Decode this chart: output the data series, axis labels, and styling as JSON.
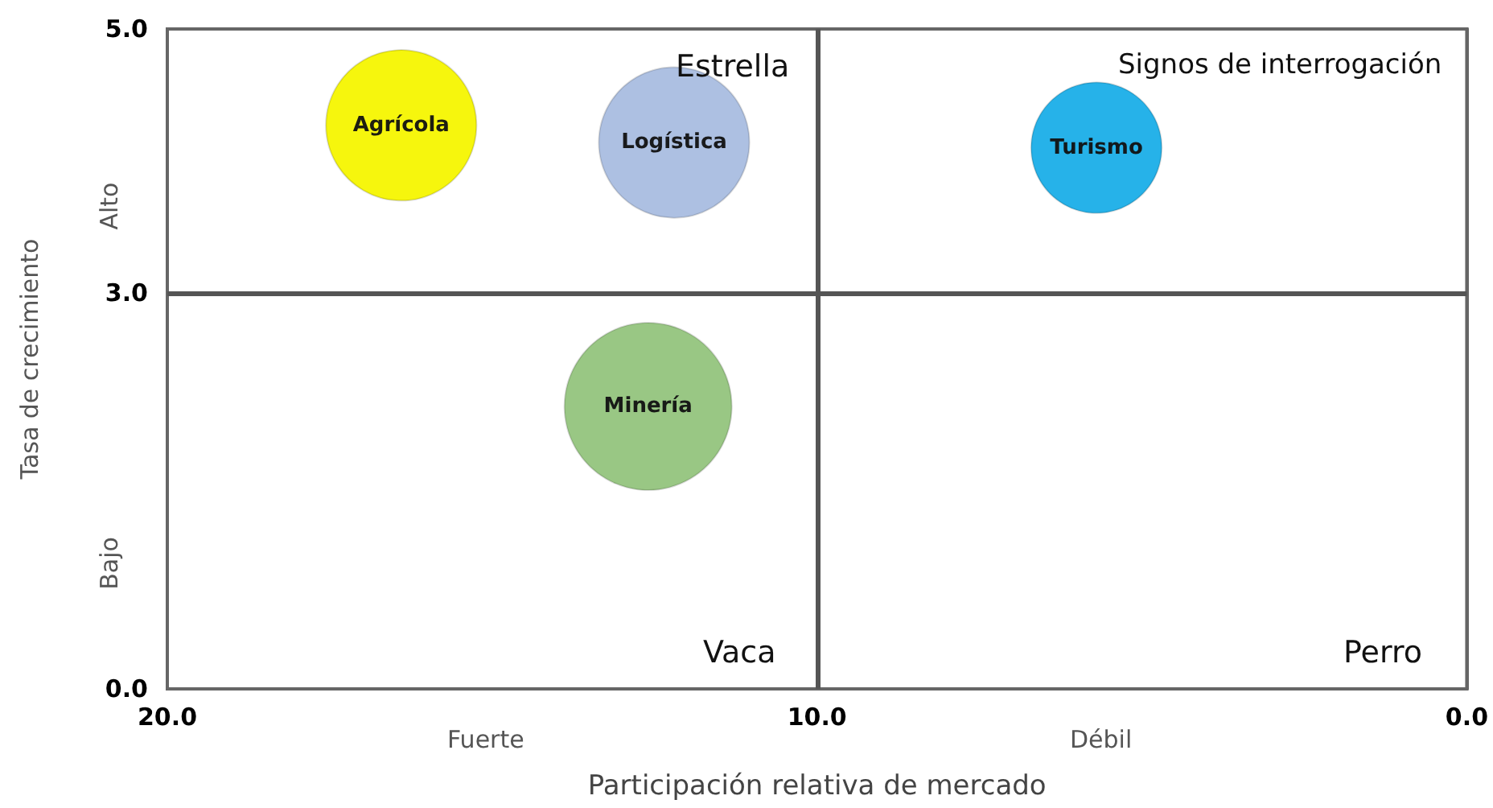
{
  "chart_data": {
    "type": "bubble",
    "xlabel": "Participación relativa de mercado",
    "ylabel": "Tasa de crecimiento",
    "xlim": [
      20,
      0
    ],
    "xticks": [
      {
        "value": 20,
        "label": "20.0"
      },
      {
        "value": 10,
        "label": "10.0"
      },
      {
        "value": 0,
        "label": "0.0"
      }
    ],
    "ylim": [
      0,
      5
    ],
    "yticks": [
      {
        "value": 0,
        "label": "0.0"
      },
      {
        "value": 3,
        "label": "3.0"
      },
      {
        "value": 5,
        "label": "5.0"
      }
    ],
    "grid": false,
    "legend": false,
    "ref_lines": [
      {
        "axis": "x",
        "value": 10,
        "color": "#555555"
      },
      {
        "axis": "y",
        "value": 3,
        "color": "#555555"
      }
    ],
    "annotations": [
      "Estrella",
      "Signos de interrogación",
      "Vaca",
      "Perro",
      "Alto",
      "Bajo",
      "Fuerte",
      "Débil"
    ],
    "series": [
      {
        "name": "Agrícola",
        "color": "#f5f500",
        "x": [
          16.4
        ],
        "values": [
          4.27
        ],
        "sizes": [
          0.81
        ]
      },
      {
        "name": "Logística",
        "color": "#a9bde0",
        "x": [
          12.2
        ],
        "values": [
          4.14
        ],
        "sizes": [
          0.81
        ]
      },
      {
        "name": "Turismo",
        "color": "#1aaee8",
        "x": [
          5.7
        ],
        "values": [
          4.1
        ],
        "sizes": [
          0.61
        ]
      },
      {
        "name": "Minería",
        "color": "#93c47d",
        "x": [
          12.6
        ],
        "values": [
          2.14
        ],
        "sizes": [
          1
        ]
      }
    ]
  }
}
